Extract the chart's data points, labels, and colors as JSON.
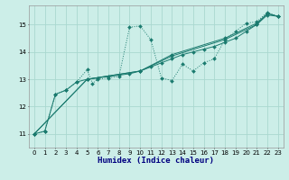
{
  "xlabel": "Humidex (Indice chaleur)",
  "bg_color": "#cceee8",
  "grid_color": "#aad8d0",
  "line_color": "#1a7a6e",
  "xlim": [
    -0.5,
    23.5
  ],
  "ylim": [
    10.5,
    15.7
  ],
  "yticks": [
    11,
    12,
    13,
    14,
    15
  ],
  "xticks": [
    0,
    1,
    2,
    3,
    4,
    5,
    6,
    7,
    8,
    9,
    10,
    11,
    12,
    13,
    14,
    15,
    16,
    17,
    18,
    19,
    20,
    21,
    22,
    23
  ],
  "series_zigzag": [
    [
      0,
      11.0
    ],
    [
      1,
      11.1
    ],
    [
      2,
      12.45
    ],
    [
      3,
      12.6
    ],
    [
      4,
      12.9
    ],
    [
      5,
      13.35
    ],
    [
      5.5,
      12.85
    ],
    [
      6,
      13.0
    ],
    [
      7,
      13.05
    ],
    [
      8,
      13.1
    ],
    [
      9,
      14.9
    ],
    [
      10,
      14.95
    ],
    [
      11,
      14.45
    ],
    [
      12,
      13.05
    ],
    [
      13,
      12.95
    ],
    [
      14,
      13.55
    ],
    [
      15,
      13.3
    ],
    [
      16,
      13.6
    ],
    [
      17,
      13.75
    ],
    [
      18,
      14.45
    ],
    [
      19,
      14.75
    ],
    [
      20,
      15.05
    ],
    [
      21,
      15.1
    ],
    [
      22,
      15.45
    ],
    [
      23,
      15.3
    ]
  ],
  "series_line1": [
    [
      0,
      11.0
    ],
    [
      1,
      11.1
    ],
    [
      2,
      12.45
    ],
    [
      3,
      12.6
    ],
    [
      4,
      12.9
    ],
    [
      5,
      13.0
    ],
    [
      6,
      13.05
    ],
    [
      7,
      13.1
    ],
    [
      8,
      13.15
    ],
    [
      9,
      13.2
    ],
    [
      10,
      13.3
    ],
    [
      11,
      13.45
    ],
    [
      12,
      13.6
    ],
    [
      13,
      13.75
    ],
    [
      14,
      13.9
    ],
    [
      15,
      14.0
    ],
    [
      16,
      14.1
    ],
    [
      17,
      14.2
    ],
    [
      18,
      14.35
    ],
    [
      19,
      14.5
    ],
    [
      20,
      14.75
    ],
    [
      21,
      15.0
    ],
    [
      22,
      15.35
    ],
    [
      23,
      15.3
    ]
  ],
  "series_line2": [
    [
      0,
      11.0
    ],
    [
      5,
      13.0
    ],
    [
      10,
      13.3
    ],
    [
      13,
      13.9
    ],
    [
      18,
      14.5
    ],
    [
      21,
      15.05
    ],
    [
      22,
      15.4
    ],
    [
      23,
      15.3
    ]
  ],
  "series_line3": [
    [
      0,
      11.0
    ],
    [
      5,
      13.0
    ],
    [
      10,
      13.3
    ],
    [
      13,
      13.85
    ],
    [
      18,
      14.45
    ],
    [
      21,
      15.0
    ],
    [
      22,
      15.4
    ],
    [
      23,
      15.3
    ]
  ]
}
